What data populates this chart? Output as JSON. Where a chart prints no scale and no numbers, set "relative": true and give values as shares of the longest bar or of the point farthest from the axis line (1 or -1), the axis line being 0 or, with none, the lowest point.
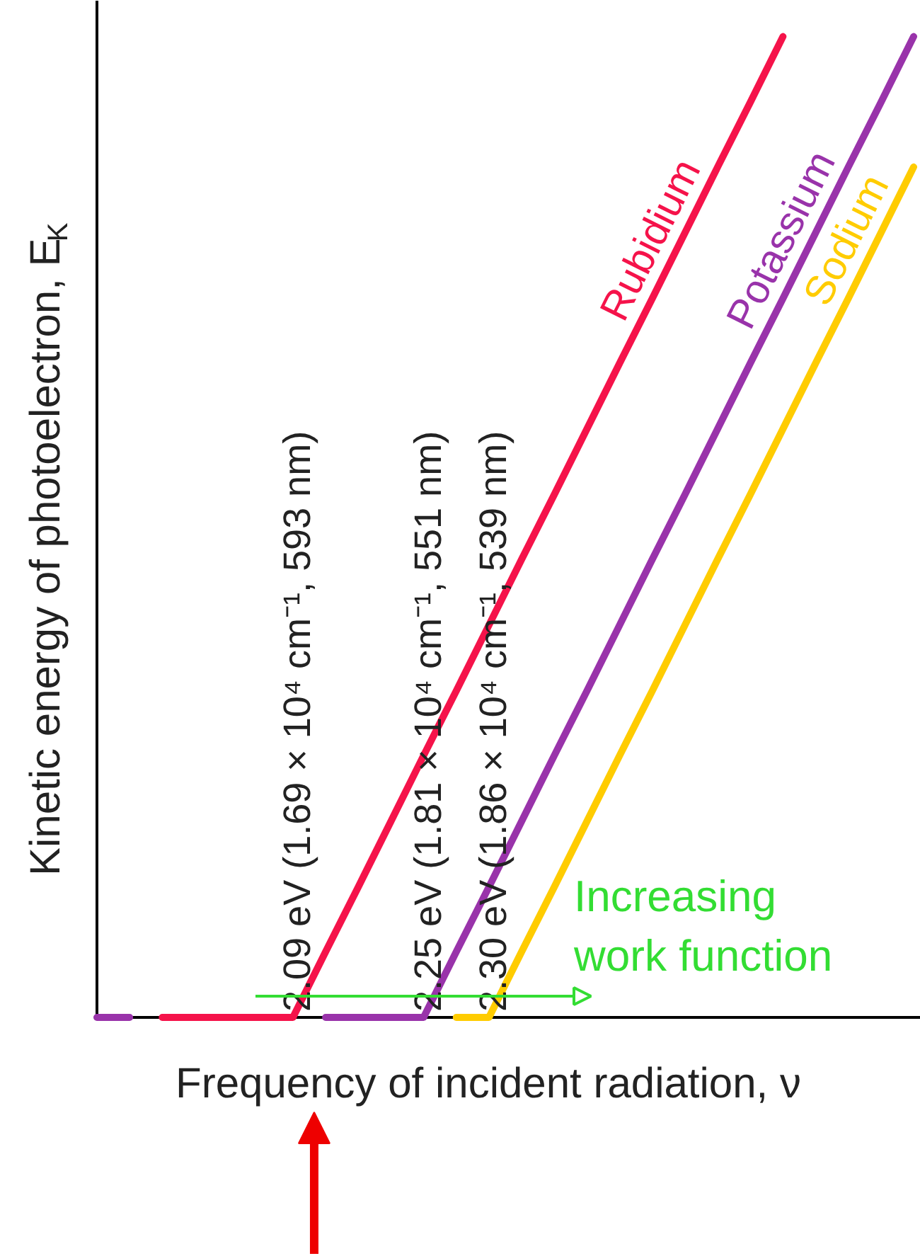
{
  "chart_data": {
    "type": "line",
    "relative": true,
    "xlabel": "Frequency of incident radiation, ν",
    "ylabel": "Kinetic energy of photoelectron, E$_{K}$",
    "categories": [
      null,
      null,
      null,
      null,
      null,
      null,
      null,
      null,
      null,
      null,
      null,
      null,
      null,
      null,
      null,
      null,
      null,
      null,
      null,
      null,
      null,
      null,
      null,
      null,
      null,
      null
    ],
    "series": [
      {
        "name": "Rubidium",
        "color": "#f5134a",
        "values": [
          null,
          null,
          0,
          0,
          0,
          0,
          0,
          0.067,
          0.133,
          0.2,
          0.267,
          0.333,
          0.4,
          0.467,
          0.533,
          0.6,
          0.667,
          0.733,
          0.8,
          0.867,
          0.933,
          1,
          null,
          null,
          null,
          null
        ]
      },
      {
        "name": "Potassium",
        "color": "#9933aa",
        "values": [
          0,
          0,
          null,
          null,
          null,
          null,
          null,
          0,
          0,
          0,
          0,
          0.067,
          0.133,
          0.2,
          0.267,
          0.333,
          0.4,
          0.467,
          0.533,
          0.6,
          0.667,
          0.733,
          0.8,
          0.867,
          0.933,
          1
        ]
      },
      {
        "name": "Sodium",
        "color": "#ffcc00",
        "values": [
          null,
          null,
          null,
          null,
          null,
          null,
          null,
          null,
          null,
          null,
          null,
          0,
          0,
          0.067,
          0.133,
          0.2,
          0.267,
          0.333,
          0.4,
          0.467,
          0.533,
          0.6,
          0.667,
          0.733,
          0.8,
          0.867
        ]
      }
    ],
    "annotations": [
      "2.09 eV (1.69 × 10⁴ cm⁻¹, 593 nm)",
      "2.25 eV (1.81 × 10⁴ cm⁻¹, 551 nm)",
      "2.30 eV (1.86 × 10⁴ cm⁻¹, 539 nm)",
      "Increasing\nwork function"
    ]
  }
}
